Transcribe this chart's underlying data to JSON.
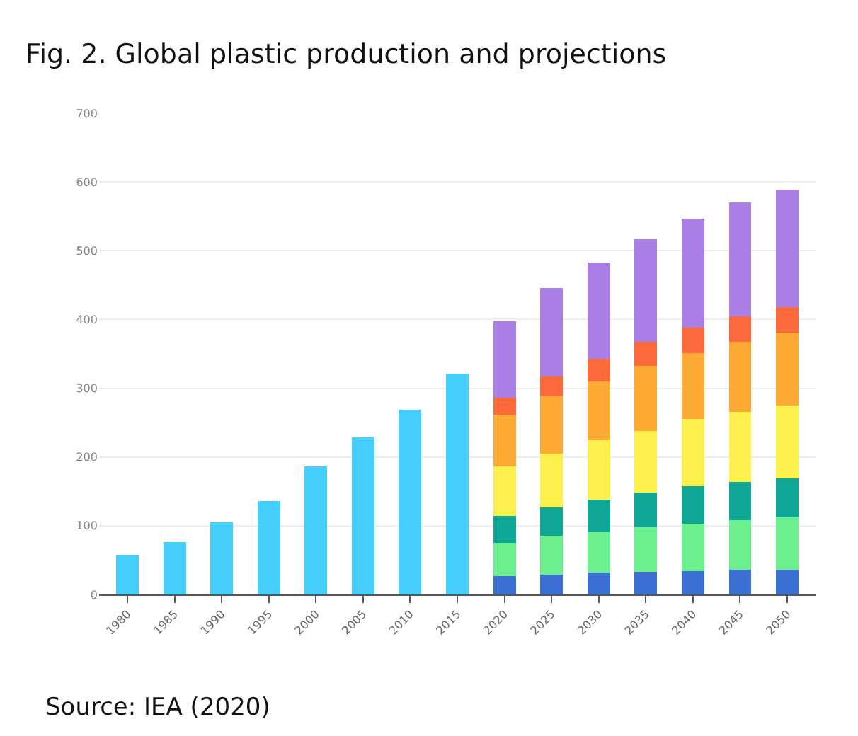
{
  "chart_data": {
    "type": "bar",
    "title": "Fig. 2. Global plastic production and projections",
    "categories": [
      "1980",
      "1985",
      "1990",
      "1995",
      "2000",
      "2005",
      "2010",
      "2015",
      "2020",
      "2025",
      "2030",
      "2035",
      "2040",
      "2045",
      "2050"
    ],
    "stacked": true,
    "series": [
      {
        "color": "#45cdfc",
        "values": [
          58,
          76,
          105,
          136,
          186,
          229,
          269,
          321,
          null,
          null,
          null,
          null,
          null,
          null,
          null
        ]
      },
      {
        "color": "#3b6fd4",
        "values": [
          null,
          null,
          null,
          null,
          null,
          null,
          null,
          null,
          27,
          29,
          32,
          33,
          34,
          36,
          36
        ]
      },
      {
        "color": "#6cf08f",
        "values": [
          null,
          null,
          null,
          null,
          null,
          null,
          null,
          null,
          48,
          56,
          59,
          65,
          69,
          72,
          76
        ]
      },
      {
        "color": "#0ea796",
        "values": [
          null,
          null,
          null,
          null,
          null,
          null,
          null,
          null,
          39,
          42,
          47,
          50,
          55,
          56,
          57
        ]
      },
      {
        "color": "#fdf04c",
        "values": [
          null,
          null,
          null,
          null,
          null,
          null,
          null,
          null,
          72,
          78,
          86,
          90,
          97,
          102,
          106
        ]
      },
      {
        "color": "#fdab35",
        "values": [
          null,
          null,
          null,
          null,
          null,
          null,
          null,
          null,
          75,
          83,
          86,
          94,
          96,
          102,
          106
        ]
      },
      {
        "color": "#fc6a3c",
        "values": [
          null,
          null,
          null,
          null,
          null,
          null,
          null,
          null,
          25,
          29,
          33,
          35,
          37,
          37,
          37
        ]
      },
      {
        "color": "#ab80e6",
        "values": [
          null,
          null,
          null,
          null,
          null,
          null,
          null,
          null,
          111,
          129,
          140,
          150,
          159,
          165,
          171
        ]
      }
    ],
    "ylim": [
      0,
      700
    ],
    "yticks": [
      0,
      100,
      200,
      300,
      400,
      500,
      600,
      700
    ],
    "grid": "y",
    "annotations": [
      "Source: IEA (2020)"
    ]
  }
}
